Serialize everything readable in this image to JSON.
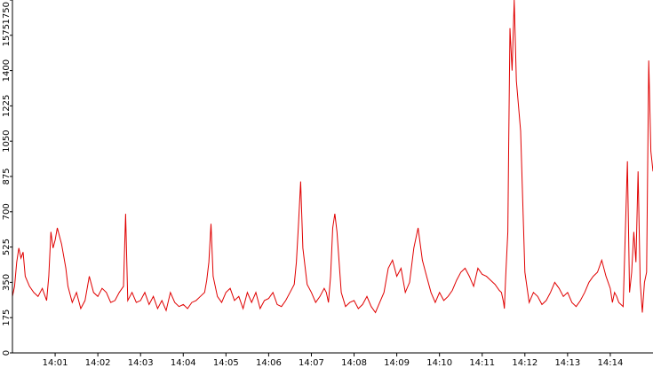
{
  "chart_data": {
    "type": "line",
    "title": "",
    "xlabel": "",
    "ylabel": "",
    "ylim": [
      0,
      1750
    ],
    "x_range_minutes": [
      0.0,
      15.0
    ],
    "y_ticks": [
      0,
      175,
      350,
      525,
      700,
      875,
      1050,
      1225,
      1400,
      1575,
      1750
    ],
    "x_ticks": [
      {
        "minute": 1,
        "label": "14:01"
      },
      {
        "minute": 2,
        "label": "14:02"
      },
      {
        "minute": 3,
        "label": "14:03"
      },
      {
        "minute": 4,
        "label": "14:04"
      },
      {
        "minute": 5,
        "label": "14:05"
      },
      {
        "minute": 6,
        "label": "14:06"
      },
      {
        "minute": 7,
        "label": "14:07"
      },
      {
        "minute": 8,
        "label": "14:08"
      },
      {
        "minute": 9,
        "label": "14:09"
      },
      {
        "minute": 10,
        "label": "14:10"
      },
      {
        "minute": 11,
        "label": "14:11"
      },
      {
        "minute": 12,
        "label": "14:12"
      },
      {
        "minute": 13,
        "label": "14:13"
      },
      {
        "minute": 14,
        "label": "14:14"
      }
    ],
    "grid": false,
    "legend": "none",
    "line_color": "#e00000",
    "series": [
      {
        "x": [
          0.0,
          0.05,
          0.1,
          0.15,
          0.2,
          0.25,
          0.3,
          0.4,
          0.5,
          0.6,
          0.7,
          0.8,
          0.85,
          0.9,
          0.95,
          1.0,
          1.05,
          1.1,
          1.15,
          1.2,
          1.25,
          1.3,
          1.4,
          1.5,
          1.6,
          1.7,
          1.8,
          1.9,
          2.0,
          2.1,
          2.2,
          2.3,
          2.4,
          2.5,
          2.6,
          2.65,
          2.7,
          2.75,
          2.8,
          2.9,
          3.0,
          3.1,
          3.2,
          3.3,
          3.4,
          3.5,
          3.6,
          3.7,
          3.8,
          3.9,
          4.0,
          4.1,
          4.2,
          4.3,
          4.4,
          4.5,
          4.55,
          4.6,
          4.65,
          4.7,
          4.8,
          4.9,
          5.0,
          5.1,
          5.2,
          5.3,
          5.4,
          5.5,
          5.6,
          5.7,
          5.8,
          5.9,
          6.0,
          6.1,
          6.2,
          6.3,
          6.4,
          6.5,
          6.6,
          6.65,
          6.7,
          6.75,
          6.8,
          6.9,
          7.0,
          7.1,
          7.2,
          7.3,
          7.35,
          7.4,
          7.45,
          7.5,
          7.55,
          7.6,
          7.7,
          7.8,
          7.9,
          8.0,
          8.1,
          8.2,
          8.3,
          8.4,
          8.5,
          8.6,
          8.7,
          8.8,
          8.9,
          9.0,
          9.1,
          9.2,
          9.3,
          9.4,
          9.5,
          9.6,
          9.7,
          9.8,
          9.9,
          10.0,
          10.1,
          10.2,
          10.3,
          10.4,
          10.5,
          10.6,
          10.7,
          10.8,
          10.9,
          11.0,
          11.1,
          11.2,
          11.3,
          11.4,
          11.45,
          11.5,
          11.52,
          11.55,
          11.6,
          11.62,
          11.65,
          11.7,
          11.75,
          11.8,
          11.9,
          12.0,
          12.1,
          12.2,
          12.3,
          12.4,
          12.5,
          12.6,
          12.7,
          12.8,
          12.9,
          13.0,
          13.1,
          13.2,
          13.3,
          13.4,
          13.5,
          13.6,
          13.7,
          13.8,
          13.9,
          14.0,
          14.05,
          14.1,
          14.15,
          14.2,
          14.3,
          14.4,
          14.45,
          14.5,
          14.55,
          14.6,
          14.65,
          14.7,
          14.75,
          14.8,
          14.85,
          14.9,
          14.95,
          15.0
        ],
        "values": [
          280,
          330,
          450,
          520,
          470,
          500,
          380,
          330,
          300,
          280,
          320,
          260,
          380,
          600,
          520,
          560,
          620,
          580,
          540,
          480,
          420,
          330,
          250,
          300,
          220,
          260,
          380,
          300,
          280,
          320,
          300,
          250,
          260,
          300,
          330,
          690,
          260,
          280,
          300,
          250,
          260,
          300,
          240,
          280,
          220,
          260,
          210,
          300,
          250,
          230,
          240,
          220,
          250,
          260,
          280,
          300,
          360,
          450,
          640,
          380,
          280,
          250,
          300,
          320,
          260,
          280,
          220,
          300,
          250,
          300,
          220,
          260,
          270,
          300,
          240,
          230,
          260,
          300,
          340,
          450,
          640,
          850,
          520,
          340,
          300,
          250,
          280,
          320,
          300,
          250,
          380,
          620,
          690,
          600,
          300,
          230,
          250,
          260,
          220,
          240,
          280,
          230,
          200,
          250,
          300,
          420,
          460,
          380,
          420,
          300,
          350,
          520,
          620,
          460,
          380,
          300,
          250,
          300,
          260,
          280,
          310,
          360,
          400,
          420,
          380,
          330,
          420,
          390,
          380,
          360,
          340,
          310,
          300,
          250,
          220,
          380,
          600,
          1000,
          1610,
          1400,
          1750,
          1350,
          1100,
          400,
          250,
          300,
          280,
          240,
          260,
          300,
          350,
          320,
          280,
          300,
          250,
          230,
          260,
          300,
          350,
          380,
          400,
          460,
          380,
          320,
          250,
          300,
          280,
          250,
          230,
          950,
          300,
          400,
          600,
          450,
          900,
          350,
          200,
          350,
          400,
          1450,
          1000,
          900
        ]
      }
    ]
  }
}
